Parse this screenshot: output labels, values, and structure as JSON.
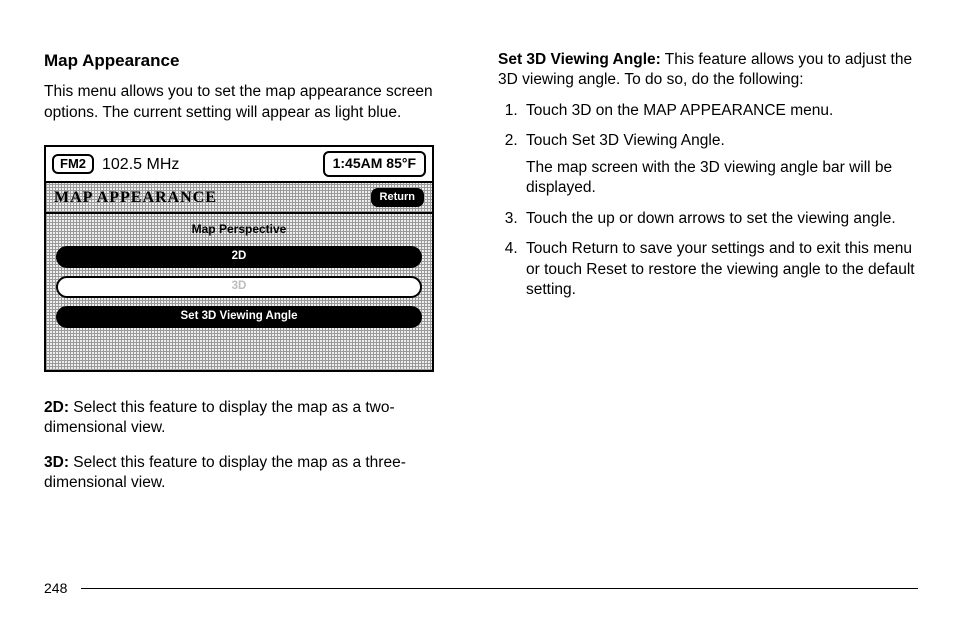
{
  "left": {
    "heading": "Map Appearance",
    "intro": "This menu allows you to set the map appearance screen options. The current setting will appear as light blue.",
    "desc2d_label": "2D:",
    "desc2d_text": "  Select this feature to display the map as a two-dimensional view.",
    "desc3d_label": "3D:",
    "desc3d_text": "  Select this feature to display the map as a three-dimensional view."
  },
  "screen": {
    "band": "FM2",
    "freq": "102.5 MHz",
    "time_temp": "1:45AM 85°F",
    "title": "MAP APPEARANCE",
    "return_label": "Return",
    "subtitle": "Map Perspective",
    "opt_2d": "2D",
    "opt_3d": "3D",
    "opt_angle": "Set 3D Viewing Angle"
  },
  "right": {
    "set3d_label": "Set 3D Viewing Angle:",
    "set3d_text": "  This feature allows you to adjust the 3D viewing angle. To do so, do the following:",
    "step1": "Touch 3D on the MAP APPEARANCE menu.",
    "step2": "Touch Set 3D Viewing Angle.",
    "step2_sub": "The map screen with the 3D viewing angle bar will be displayed.",
    "step3": "Touch the up or down arrows to set the viewing angle.",
    "step4": "Touch Return to save your settings and to exit this menu or touch Reset to restore the viewing angle to the default setting."
  },
  "page_number": "248"
}
